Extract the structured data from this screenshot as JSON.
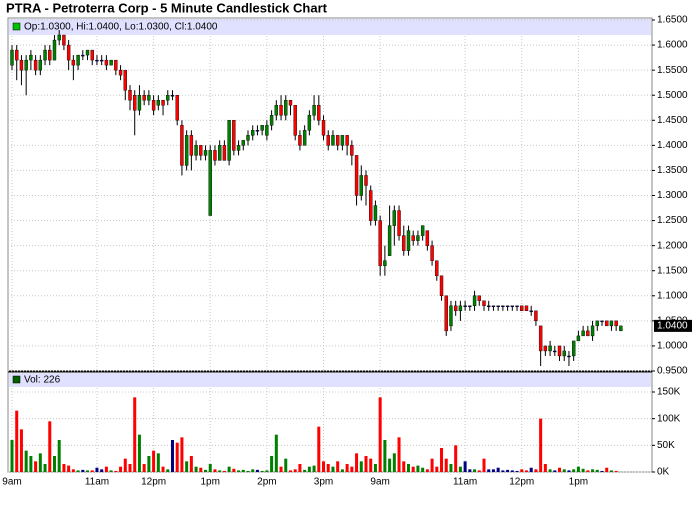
{
  "chart_data": {
    "type": "candlestick",
    "title": "PTRA - Petroterra Corp - 5 Minute Candlestick Chart",
    "legend_text": "Op:1.0300, Hi:1.0400, Lo:1.0300, Cl:1.0400",
    "volume_legend_text": "Vol: 226",
    "last_price_label": "1.0400",
    "up_color": "#008000",
    "down_color": "#ff0000",
    "flat_color": "#000080",
    "grid": true,
    "categories": [
      "9am",
      null,
      null,
      null,
      null,
      null,
      null,
      null,
      null,
      null,
      null,
      null,
      null,
      null,
      null,
      null,
      null,
      null,
      "11am",
      null,
      null,
      null,
      null,
      null,
      null,
      null,
      null,
      null,
      null,
      null,
      "12pm",
      null,
      null,
      null,
      null,
      null,
      null,
      null,
      null,
      null,
      null,
      null,
      "1pm",
      null,
      null,
      null,
      null,
      null,
      null,
      null,
      null,
      null,
      null,
      null,
      "2pm",
      null,
      null,
      null,
      null,
      null,
      null,
      null,
      null,
      null,
      null,
      null,
      "3pm",
      null,
      null,
      null,
      null,
      null,
      null,
      null,
      null,
      null,
      null,
      null,
      "9am",
      null,
      null,
      null,
      null,
      null,
      null,
      null,
      null,
      null,
      null,
      null,
      null,
      null,
      null,
      null,
      null,
      null,
      "11am",
      null,
      null,
      null,
      null,
      null,
      null,
      null,
      null,
      null,
      null,
      null,
      "12pm",
      null,
      null,
      null,
      null,
      null,
      null,
      null,
      null,
      null,
      null,
      null,
      "1pm",
      null,
      null,
      null,
      null,
      null,
      null,
      null,
      null,
      null
    ],
    "open": [
      1.56,
      1.59,
      1.57,
      1.55,
      1.57,
      1.57,
      1.55,
      1.57,
      1.59,
      1.57,
      1.61,
      1.62,
      1.6,
      1.57,
      1.56,
      1.58,
      1.58,
      1.59,
      1.57,
      1.57,
      1.57,
      1.56,
      1.57,
      1.55,
      1.55,
      1.51,
      1.5,
      1.47,
      1.5,
      1.49,
      1.49,
      1.48,
      1.49,
      1.49,
      1.5,
      1.5,
      1.44,
      1.36,
      1.42,
      1.38,
      1.4,
      1.38,
      1.26,
      1.39,
      1.37,
      1.4,
      1.37,
      1.45,
      1.39,
      1.4,
      1.41,
      1.42,
      1.43,
      1.43,
      1.42,
      1.44,
      1.46,
      1.48,
      1.46,
      1.49,
      1.48,
      1.42,
      1.4,
      1.43,
      1.46,
      1.48,
      1.45,
      1.42,
      1.4,
      1.42,
      1.4,
      1.42,
      1.4,
      1.38,
      1.3,
      1.34,
      1.31,
      1.25,
      1.25,
      1.16,
      1.18,
      1.24,
      1.27,
      1.22,
      1.19,
      1.22,
      1.21,
      1.22,
      1.23,
      1.2,
      1.17,
      1.14,
      1.1,
      1.04,
      1.08,
      1.07,
      1.08,
      1.08,
      1.08,
      1.1,
      1.09,
      1.08,
      1.08,
      1.08,
      1.08,
      1.08,
      1.08,
      1.08,
      1.08,
      1.08,
      1.07,
      1.07,
      1.04,
      1.0,
      0.99,
      0.99,
      1.0,
      0.98,
      0.98,
      0.98,
      1.01,
      1.02,
      1.03,
      1.02,
      1.04,
      1.05,
      1.05,
      1.04,
      1.05,
      1.03
    ],
    "high": [
      1.6,
      1.6,
      1.58,
      1.58,
      1.59,
      1.58,
      1.58,
      1.6,
      1.6,
      1.62,
      1.63,
      1.62,
      1.61,
      1.58,
      1.58,
      1.59,
      1.59,
      1.59,
      1.58,
      1.58,
      1.58,
      1.57,
      1.57,
      1.56,
      1.55,
      1.52,
      1.51,
      1.52,
      1.51,
      1.51,
      1.5,
      1.5,
      1.49,
      1.51,
      1.51,
      1.5,
      1.45,
      1.43,
      1.43,
      1.41,
      1.4,
      1.4,
      1.4,
      1.4,
      1.41,
      1.41,
      1.45,
      1.45,
      1.41,
      1.41,
      1.43,
      1.44,
      1.44,
      1.44,
      1.45,
      1.47,
      1.49,
      1.5,
      1.5,
      1.49,
      1.48,
      1.43,
      1.44,
      1.47,
      1.5,
      1.5,
      1.46,
      1.43,
      1.43,
      1.42,
      1.42,
      1.42,
      1.41,
      1.38,
      1.36,
      1.35,
      1.32,
      1.29,
      1.26,
      1.2,
      1.28,
      1.28,
      1.28,
      1.24,
      1.24,
      1.23,
      1.23,
      1.24,
      1.23,
      1.21,
      1.17,
      1.14,
      1.1,
      1.09,
      1.09,
      1.09,
      1.09,
      1.08,
      1.11,
      1.1,
      1.09,
      1.09,
      1.08,
      1.08,
      1.08,
      1.08,
      1.08,
      1.08,
      1.08,
      1.08,
      1.08,
      1.07,
      1.04,
      1.0,
      1.01,
      1.0,
      1.0,
      1.0,
      0.99,
      1.01,
      1.03,
      1.04,
      1.04,
      1.05,
      1.05,
      1.05,
      1.05,
      1.05,
      1.05,
      1.04
    ],
    "low": [
      1.55,
      1.53,
      1.52,
      1.5,
      1.55,
      1.54,
      1.54,
      1.56,
      1.56,
      1.57,
      1.6,
      1.59,
      1.55,
      1.53,
      1.55,
      1.57,
      1.57,
      1.56,
      1.56,
      1.56,
      1.55,
      1.56,
      1.54,
      1.53,
      1.49,
      1.47,
      1.42,
      1.46,
      1.48,
      1.48,
      1.46,
      1.47,
      1.46,
      1.48,
      1.49,
      1.44,
      1.34,
      1.35,
      1.35,
      1.37,
      1.37,
      1.37,
      1.26,
      1.36,
      1.37,
      1.37,
      1.36,
      1.38,
      1.38,
      1.39,
      1.4,
      1.41,
      1.42,
      1.42,
      1.41,
      1.43,
      1.45,
      1.45,
      1.45,
      1.46,
      1.41,
      1.39,
      1.4,
      1.42,
      1.45,
      1.44,
      1.41,
      1.39,
      1.4,
      1.39,
      1.39,
      1.38,
      1.36,
      1.28,
      1.29,
      1.28,
      1.24,
      1.24,
      1.14,
      1.14,
      1.18,
      1.2,
      1.21,
      1.18,
      1.18,
      1.2,
      1.2,
      1.21,
      1.19,
      1.16,
      1.13,
      1.09,
      1.02,
      1.03,
      1.06,
      1.05,
      1.07,
      1.07,
      1.07,
      1.08,
      1.07,
      1.07,
      1.07,
      1.07,
      1.07,
      1.07,
      1.07,
      1.07,
      1.07,
      1.07,
      1.06,
      1.04,
      0.96,
      0.98,
      0.98,
      0.98,
      0.97,
      0.97,
      0.96,
      0.97,
      1.01,
      1.02,
      1.02,
      1.01,
      1.03,
      1.04,
      1.04,
      1.03,
      1.03,
      1.03
    ],
    "close": [
      1.59,
      1.57,
      1.55,
      1.57,
      1.58,
      1.55,
      1.57,
      1.59,
      1.57,
      1.61,
      1.62,
      1.6,
      1.57,
      1.56,
      1.58,
      1.58,
      1.59,
      1.57,
      1.57,
      1.57,
      1.56,
      1.57,
      1.55,
      1.54,
      1.51,
      1.49,
      1.47,
      1.5,
      1.49,
      1.5,
      1.47,
      1.49,
      1.48,
      1.5,
      1.5,
      1.45,
      1.36,
      1.42,
      1.38,
      1.4,
      1.38,
      1.39,
      1.39,
      1.37,
      1.4,
      1.37,
      1.45,
      1.39,
      1.4,
      1.41,
      1.42,
      1.43,
      1.43,
      1.44,
      1.44,
      1.46,
      1.48,
      1.46,
      1.49,
      1.48,
      1.42,
      1.4,
      1.43,
      1.46,
      1.48,
      1.45,
      1.42,
      1.4,
      1.42,
      1.4,
      1.42,
      1.4,
      1.38,
      1.3,
      1.34,
      1.32,
      1.25,
      1.28,
      1.16,
      1.17,
      1.24,
      1.27,
      1.22,
      1.19,
      1.23,
      1.21,
      1.22,
      1.24,
      1.2,
      1.17,
      1.14,
      1.1,
      1.03,
      1.08,
      1.07,
      1.08,
      1.08,
      1.08,
      1.1,
      1.09,
      1.08,
      1.08,
      1.08,
      1.08,
      1.08,
      1.08,
      1.08,
      1.08,
      1.07,
      1.07,
      1.07,
      1.05,
      0.99,
      0.99,
      1.0,
      0.99,
      0.98,
      0.99,
      0.98,
      1.01,
      1.02,
      1.03,
      1.02,
      1.04,
      1.05,
      1.05,
      1.04,
      1.05,
      1.04,
      1.04
    ],
    "volume": [
      60000,
      115000,
      80000,
      40000,
      30000,
      20000,
      35000,
      15000,
      95000,
      30000,
      60000,
      15000,
      12000,
      5000,
      3000,
      4000,
      3000,
      3000,
      8000,
      5000,
      10000,
      3000,
      2000,
      10000,
      25000,
      15000,
      140000,
      70000,
      15000,
      30000,
      40000,
      35000,
      10000,
      5000,
      60000,
      55000,
      65000,
      20000,
      30000,
      10000,
      8000,
      4000,
      15000,
      5000,
      3000,
      2000,
      10000,
      6000,
      3000,
      4000,
      2000,
      5000,
      4000,
      2000,
      3000,
      30000,
      70000,
      10000,
      25000,
      3000,
      5000,
      15000,
      4000,
      10000,
      12000,
      85000,
      20000,
      15000,
      10000,
      20000,
      5000,
      15000,
      10000,
      35000,
      20000,
      30000,
      25000,
      15000,
      140000,
      60000,
      25000,
      35000,
      65000,
      20000,
      15000,
      10000,
      12000,
      8000,
      5000,
      25000,
      10000,
      45000,
      25000,
      15000,
      50000,
      10000,
      20000,
      5000,
      5000,
      3000,
      25000,
      5000,
      5000,
      8000,
      3000,
      4000,
      3000,
      2000,
      5000,
      3000,
      8000,
      5000,
      100000,
      15000,
      5000,
      3000,
      8000,
      5000,
      3000,
      5000,
      10000,
      6000,
      3000,
      5000,
      4000,
      2000,
      8000,
      3000,
      2000,
      226
    ],
    "ylim": [
      0.95,
      1.65
    ],
    "yticks": [
      {
        "value": 0.95,
        "label": "0.9500"
      },
      {
        "value": 1.0,
        "label": "1.0000"
      },
      {
        "value": 1.05,
        "label": "1.0500"
      },
      {
        "value": 1.1,
        "label": "1.1000"
      },
      {
        "value": 1.15,
        "label": "1.1500"
      },
      {
        "value": 1.2,
        "label": "1.2000"
      },
      {
        "value": 1.25,
        "label": "1.2500"
      },
      {
        "value": 1.3,
        "label": "1.3000"
      },
      {
        "value": 1.35,
        "label": "1.3500"
      },
      {
        "value": 1.4,
        "label": "1.4000"
      },
      {
        "value": 1.45,
        "label": "1.4500"
      },
      {
        "value": 1.5,
        "label": "1.5000"
      },
      {
        "value": 1.55,
        "label": "1.5500"
      },
      {
        "value": 1.6,
        "label": "1.6000"
      },
      {
        "value": 1.65,
        "label": "1.6500"
      }
    ],
    "y2lim": [
      0,
      180000
    ],
    "y2ticks": [
      {
        "value": 0,
        "label": "0K"
      },
      {
        "value": 50000,
        "label": "50K"
      },
      {
        "value": 100000,
        "label": "100K"
      },
      {
        "value": 150000,
        "label": "150K"
      }
    ]
  }
}
